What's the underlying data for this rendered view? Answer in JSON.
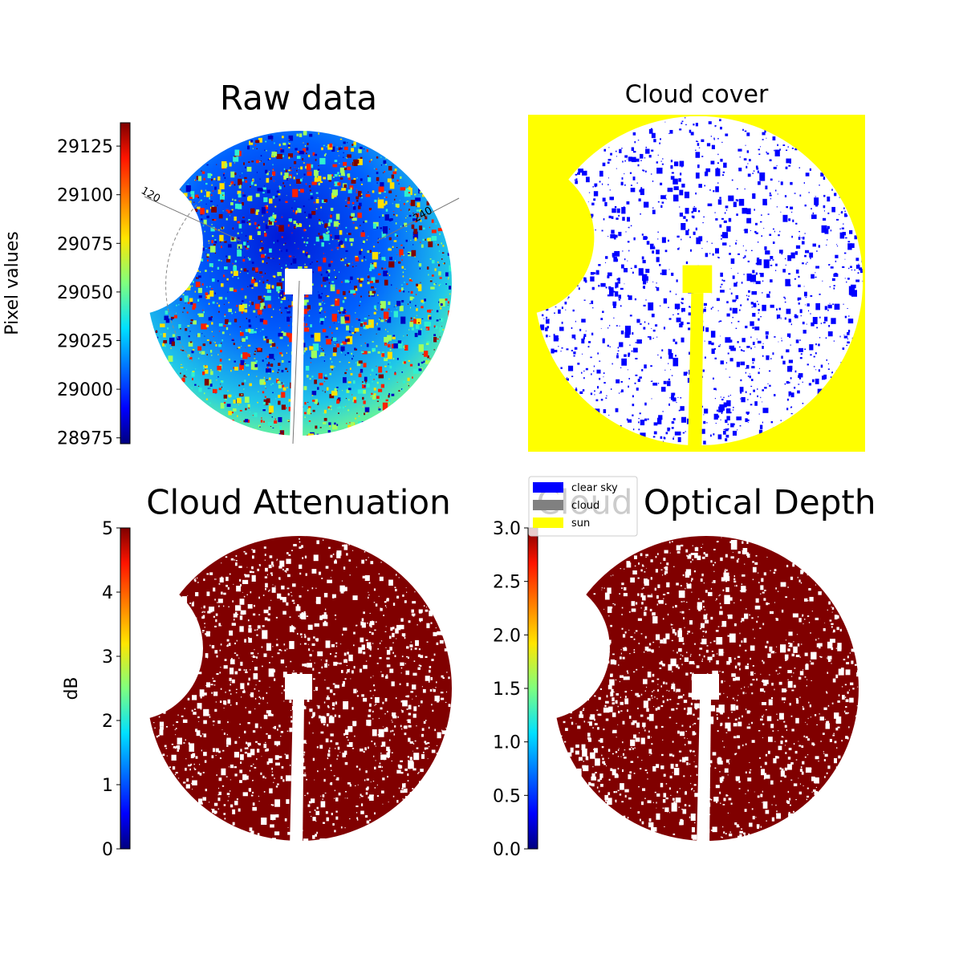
{
  "chart_data": [
    {
      "type": "image",
      "title": "Raw data",
      "colorbar": {
        "label": "Pixel values",
        "lim": [
          28972,
          29137
        ],
        "ticks": [
          28975,
          29000,
          29025,
          29050,
          29075,
          29100,
          29125
        ]
      },
      "annotations": [
        "120",
        "240"
      ]
    },
    {
      "type": "image",
      "title": "Cloud cover",
      "legend": [
        {
          "name": "clear sky",
          "color": "#0000ff"
        },
        {
          "name": "cloud",
          "color": "#808080"
        },
        {
          "name": "sun",
          "color": "#ffff00"
        }
      ]
    },
    {
      "type": "image",
      "title": "Cloud Attenuation",
      "colorbar": {
        "label": "dB",
        "lim": [
          0,
          5
        ],
        "ticks": [
          0,
          1,
          2,
          3,
          4,
          5
        ]
      }
    },
    {
      "type": "image",
      "title": "Cloud Optical Depth",
      "colorbar": {
        "lim": [
          0,
          3
        ],
        "ticks": [
          {
            "value": 0,
            "label": "0.0"
          },
          0.5,
          {
            "value": 1,
            "label": "1.0"
          },
          1.5,
          {
            "value": 2,
            "label": "2.0"
          },
          2.5,
          {
            "value": 3,
            "label": "3.0"
          }
        ]
      }
    }
  ]
}
